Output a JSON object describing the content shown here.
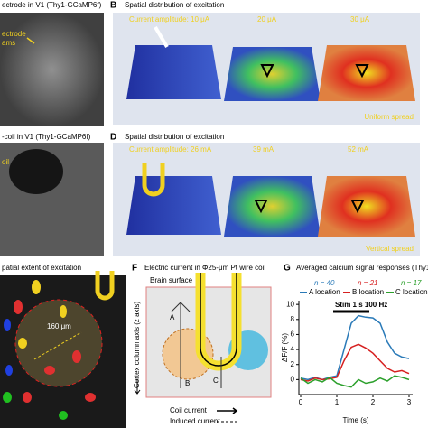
{
  "panel_a": {
    "title": "ectrode in V1 (Thy1-GCaMP6f)",
    "labels": [
      "ectrode",
      "ams"
    ]
  },
  "panel_b": {
    "letter": "B",
    "title": "Spatial distribution of excitation",
    "amplitudes": [
      "Current amplitude: 10 μA",
      "20 μA",
      "30 μA"
    ],
    "note": "Uniform spread"
  },
  "panel_c": {
    "title": "-coil in V1 (Thy1-GCaMP6f)",
    "label": "oil"
  },
  "panel_d": {
    "letter": "D",
    "title": "Spatial distribution of excitation",
    "amplitudes": [
      "Current amplitude: 26 mA",
      "39 mA",
      "52 mA"
    ],
    "note": "Vertical spread"
  },
  "panel_e": {
    "title": "patial extent of excitation",
    "scale": "160 μm"
  },
  "panel_f": {
    "letter": "F",
    "title": "Electric current in Φ25-μm Pt wire coil",
    "surface": "Brain surface",
    "axis": "Cortex column axis (z axis)",
    "sites": [
      "A",
      "B",
      "C"
    ],
    "legend": [
      "Coil current",
      "Induced current"
    ]
  },
  "chart_data": {
    "type": "line",
    "letter": "G",
    "title": "Averaged calcium signal responses (Thy1-",
    "x_label": "Time (s)",
    "y_label": "ΔF/F (%)",
    "x": [
      0,
      0.2,
      0.4,
      0.6,
      0.8,
      1.0,
      1.2,
      1.4,
      1.6,
      1.8,
      2.0,
      2.2,
      2.4,
      2.6,
      2.8,
      3.0
    ],
    "series": [
      {
        "name": "A location",
        "n_label": "n = 40",
        "color": "#2a7ab8",
        "values": [
          0.2,
          0,
          0.3,
          0,
          0.3,
          0.5,
          4,
          7.5,
          8.5,
          8.3,
          8.2,
          7.5,
          5,
          3.5,
          3,
          2.8
        ]
      },
      {
        "name": "B location",
        "n_label": "n = 21",
        "color": "#d62020",
        "values": [
          0,
          -0.2,
          0.2,
          0,
          0.1,
          0.3,
          2.5,
          4.3,
          4.7,
          4.2,
          3.5,
          2.5,
          1.5,
          1.0,
          1.2,
          0.8
        ]
      },
      {
        "name": "C location",
        "n_label": "n = 17",
        "color": "#2ca02c",
        "values": [
          0.2,
          -0.5,
          0,
          -0.3,
          0.3,
          -0.5,
          -0.8,
          -1,
          0,
          -0.5,
          -0.3,
          0.2,
          -0.2,
          0.5,
          0.3,
          0
        ]
      }
    ],
    "stim": {
      "label": "Stim 1 s 100 Hz",
      "start": 0.9,
      "end": 1.9
    },
    "xlim": [
      -0.05,
      3.1
    ],
    "ylim": [
      -2,
      10.5
    ],
    "xticks": [
      0,
      1,
      2,
      3
    ],
    "yticks": [
      0,
      2,
      4,
      6,
      8,
      10
    ]
  }
}
